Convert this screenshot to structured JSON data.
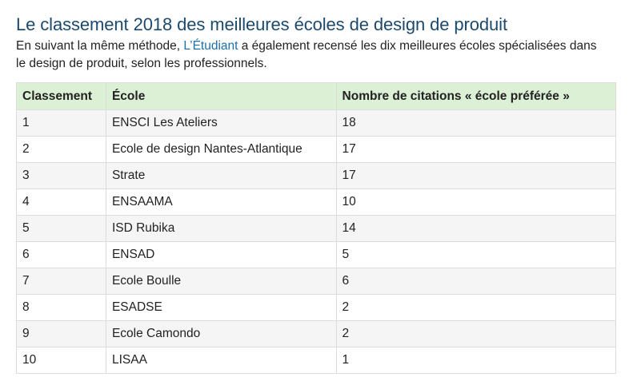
{
  "article": {
    "title": "Le classement 2018 des meilleures écoles de design de produit",
    "intro_before_link": "En suivant la même méthode, ",
    "intro_link": "L’Étudiant",
    "intro_after_link": " a également recensé les dix meilleures écoles spécialisées dans le design de produit, selon les professionnels."
  },
  "table": {
    "headers": [
      "Classement",
      "École",
      "Nombre de citations « école préférée »"
    ],
    "rows": [
      [
        "1",
        "ENSCI Les Ateliers",
        "18"
      ],
      [
        "2",
        "Ecole de design Nantes-Atlantique",
        "17"
      ],
      [
        "3",
        "Strate",
        "17"
      ],
      [
        "4",
        "ENSAAMA",
        "10"
      ],
      [
        "5",
        "ISD Rubika",
        "14"
      ],
      [
        "6",
        "ENSAD",
        "5"
      ],
      [
        "7",
        "Ecole Boulle",
        "6"
      ],
      [
        "8",
        "ESADSE",
        "2"
      ],
      [
        "9",
        "Ecole Camondo",
        "2"
      ],
      [
        "10",
        "LISAA",
        "1"
      ]
    ]
  },
  "colors": {
    "title": "#1c4a6e",
    "link": "#1f6fa8",
    "header_bg": "#dcf0d6",
    "stripe_bg": "#f5f5f5"
  }
}
